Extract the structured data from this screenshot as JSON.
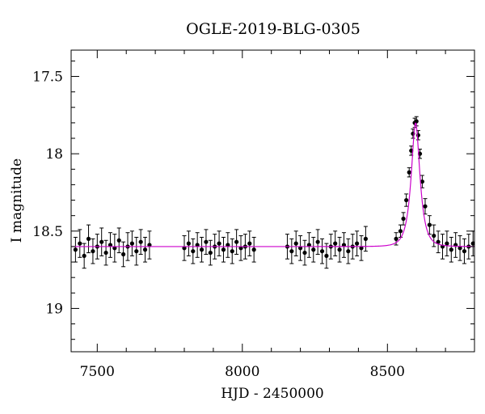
{
  "chart_data": {
    "type": "scatter",
    "title": "OGLE-2019-BLG-0305",
    "xlabel": "HJD - 2450000",
    "ylabel": "I magnitude",
    "xlim": [
      7410,
      8800
    ],
    "ylim": [
      19.28,
      17.33
    ],
    "y_inverted": true,
    "x_ticks": [
      7500,
      8000,
      8500
    ],
    "y_ticks": [
      17.5,
      18,
      18.5,
      19
    ],
    "x_tick_labels": [
      "7500",
      "8000",
      "8500"
    ],
    "y_tick_labels": [
      "17.5",
      "18",
      "18.5",
      "19"
    ],
    "grid": false,
    "colors": {
      "points": "#000000",
      "model": "#cc00cc"
    },
    "series": [
      {
        "kind": "points_with_errorbars",
        "points": [
          {
            "x": 7425,
            "y": 18.62,
            "err": 0.08
          },
          {
            "x": 7440,
            "y": 18.58,
            "err": 0.09
          },
          {
            "x": 7455,
            "y": 18.66,
            "err": 0.08
          },
          {
            "x": 7470,
            "y": 18.55,
            "err": 0.09
          },
          {
            "x": 7485,
            "y": 18.63,
            "err": 0.08
          },
          {
            "x": 7500,
            "y": 18.6,
            "err": 0.08
          },
          {
            "x": 7515,
            "y": 18.57,
            "err": 0.09
          },
          {
            "x": 7530,
            "y": 18.64,
            "err": 0.08
          },
          {
            "x": 7545,
            "y": 18.59,
            "err": 0.08
          },
          {
            "x": 7560,
            "y": 18.61,
            "err": 0.09
          },
          {
            "x": 7575,
            "y": 18.56,
            "err": 0.08
          },
          {
            "x": 7590,
            "y": 18.65,
            "err": 0.08
          },
          {
            "x": 7605,
            "y": 18.6,
            "err": 0.09
          },
          {
            "x": 7620,
            "y": 18.58,
            "err": 0.08
          },
          {
            "x": 7635,
            "y": 18.63,
            "err": 0.09
          },
          {
            "x": 7650,
            "y": 18.57,
            "err": 0.08
          },
          {
            "x": 7665,
            "y": 18.62,
            "err": 0.08
          },
          {
            "x": 7680,
            "y": 18.59,
            "err": 0.09
          },
          {
            "x": 7800,
            "y": 18.61,
            "err": 0.08
          },
          {
            "x": 7815,
            "y": 18.58,
            "err": 0.08
          },
          {
            "x": 7830,
            "y": 18.63,
            "err": 0.08
          },
          {
            "x": 7845,
            "y": 18.59,
            "err": 0.08
          },
          {
            "x": 7860,
            "y": 18.62,
            "err": 0.08
          },
          {
            "x": 7875,
            "y": 18.57,
            "err": 0.08
          },
          {
            "x": 7890,
            "y": 18.64,
            "err": 0.08
          },
          {
            "x": 7905,
            "y": 18.6,
            "err": 0.08
          },
          {
            "x": 7920,
            "y": 18.58,
            "err": 0.08
          },
          {
            "x": 7935,
            "y": 18.62,
            "err": 0.08
          },
          {
            "x": 7950,
            "y": 18.59,
            "err": 0.08
          },
          {
            "x": 7965,
            "y": 18.63,
            "err": 0.08
          },
          {
            "x": 7980,
            "y": 18.57,
            "err": 0.08
          },
          {
            "x": 7995,
            "y": 18.61,
            "err": 0.08
          },
          {
            "x": 8010,
            "y": 18.6,
            "err": 0.08
          },
          {
            "x": 8025,
            "y": 18.58,
            "err": 0.08
          },
          {
            "x": 8040,
            "y": 18.62,
            "err": 0.08
          },
          {
            "x": 8155,
            "y": 18.6,
            "err": 0.08
          },
          {
            "x": 8170,
            "y": 18.63,
            "err": 0.08
          },
          {
            "x": 8185,
            "y": 18.58,
            "err": 0.08
          },
          {
            "x": 8200,
            "y": 18.61,
            "err": 0.08
          },
          {
            "x": 8215,
            "y": 18.64,
            "err": 0.08
          },
          {
            "x": 8230,
            "y": 18.59,
            "err": 0.08
          },
          {
            "x": 8245,
            "y": 18.62,
            "err": 0.08
          },
          {
            "x": 8260,
            "y": 18.57,
            "err": 0.08
          },
          {
            "x": 8275,
            "y": 18.63,
            "err": 0.08
          },
          {
            "x": 8290,
            "y": 18.66,
            "err": 0.08
          },
          {
            "x": 8305,
            "y": 18.6,
            "err": 0.08
          },
          {
            "x": 8320,
            "y": 18.58,
            "err": 0.08
          },
          {
            "x": 8335,
            "y": 18.62,
            "err": 0.08
          },
          {
            "x": 8350,
            "y": 18.59,
            "err": 0.08
          },
          {
            "x": 8365,
            "y": 18.63,
            "err": 0.08
          },
          {
            "x": 8380,
            "y": 18.6,
            "err": 0.08
          },
          {
            "x": 8395,
            "y": 18.58,
            "err": 0.08
          },
          {
            "x": 8410,
            "y": 18.61,
            "err": 0.08
          },
          {
            "x": 8425,
            "y": 18.55,
            "err": 0.08
          },
          {
            "x": 8530,
            "y": 18.55,
            "err": 0.04
          },
          {
            "x": 8545,
            "y": 18.5,
            "err": 0.04
          },
          {
            "x": 8555,
            "y": 18.42,
            "err": 0.04
          },
          {
            "x": 8565,
            "y": 18.3,
            "err": 0.04
          },
          {
            "x": 8575,
            "y": 18.12,
            "err": 0.03
          },
          {
            "x": 8582,
            "y": 17.98,
            "err": 0.03
          },
          {
            "x": 8588,
            "y": 17.87,
            "err": 0.03
          },
          {
            "x": 8594,
            "y": 17.8,
            "err": 0.03
          },
          {
            "x": 8600,
            "y": 17.79,
            "err": 0.03
          },
          {
            "x": 8606,
            "y": 17.88,
            "err": 0.03
          },
          {
            "x": 8612,
            "y": 18.0,
            "err": 0.03
          },
          {
            "x": 8620,
            "y": 18.18,
            "err": 0.04
          },
          {
            "x": 8630,
            "y": 18.34,
            "err": 0.05
          },
          {
            "x": 8645,
            "y": 18.46,
            "err": 0.06
          },
          {
            "x": 8660,
            "y": 18.53,
            "err": 0.07
          },
          {
            "x": 8675,
            "y": 18.57,
            "err": 0.07
          },
          {
            "x": 8690,
            "y": 18.6,
            "err": 0.08
          },
          {
            "x": 8705,
            "y": 18.58,
            "err": 0.08
          },
          {
            "x": 8720,
            "y": 18.62,
            "err": 0.08
          },
          {
            "x": 8735,
            "y": 18.59,
            "err": 0.08
          },
          {
            "x": 8750,
            "y": 18.61,
            "err": 0.08
          },
          {
            "x": 8765,
            "y": 18.63,
            "err": 0.08
          },
          {
            "x": 8780,
            "y": 18.6,
            "err": 0.08
          },
          {
            "x": 8795,
            "y": 18.58,
            "err": 0.08
          }
        ]
      },
      {
        "kind": "model_curve",
        "baseline": 18.6,
        "peak_x": 8597,
        "peak_mag": 17.8,
        "tE": 26,
        "u0": 0.5
      }
    ]
  }
}
